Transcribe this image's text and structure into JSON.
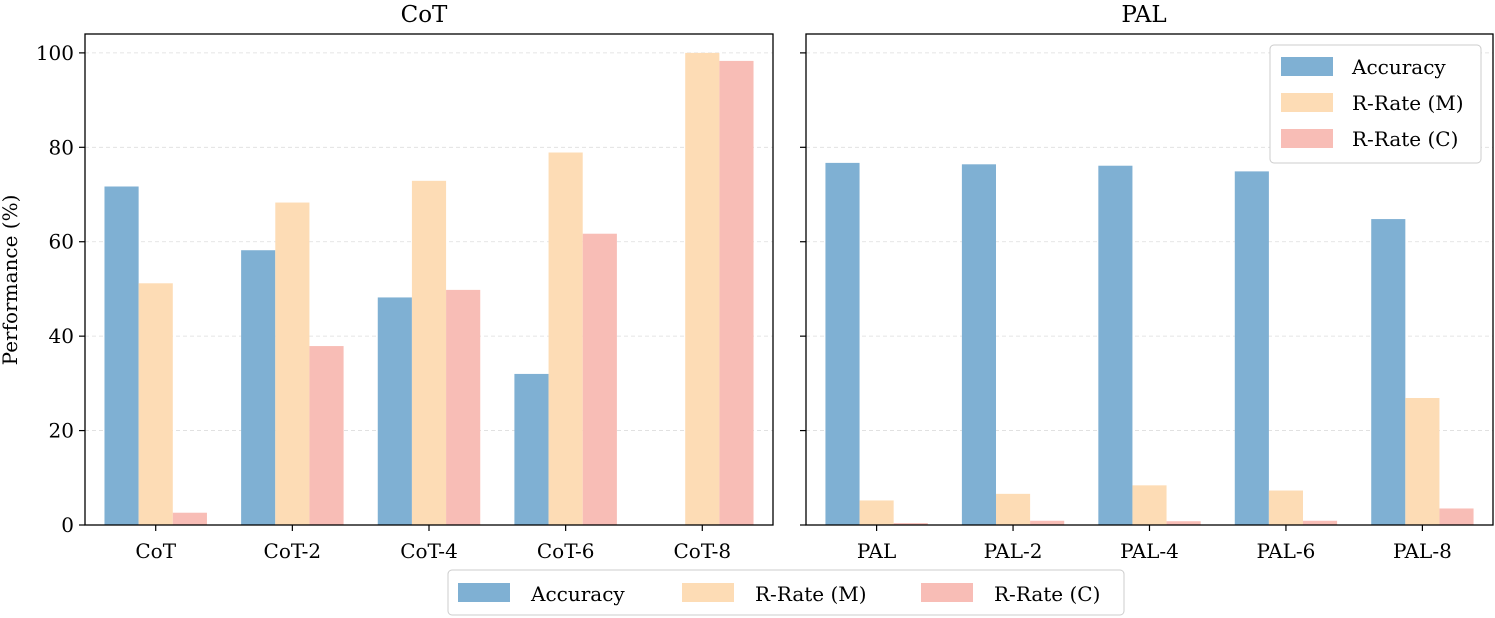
{
  "chart_data": [
    {
      "type": "bar",
      "title": "CoT",
      "ylabel": "Performance (%)",
      "xlabel": "",
      "ylim": [
        0,
        104
      ],
      "yticks": [
        0,
        20,
        40,
        60,
        80,
        100
      ],
      "grid": "y-dashed",
      "categories": [
        "CoT",
        "CoT-2",
        "CoT-4",
        "CoT-6",
        "CoT-8"
      ],
      "series": [
        {
          "name": "Accuracy",
          "color": "#7fb0d3",
          "values": [
            71.7,
            58.2,
            48.2,
            32.0,
            0.0
          ]
        },
        {
          "name": "R-Rate (M)",
          "color": "#fddcb5",
          "values": [
            51.2,
            68.3,
            72.9,
            78.9,
            100.0
          ]
        },
        {
          "name": "R-Rate (C)",
          "color": "#f8bdb6",
          "values": [
            2.6,
            37.9,
            49.8,
            61.7,
            98.3
          ]
        }
      ]
    },
    {
      "type": "bar",
      "title": "PAL",
      "ylabel": "",
      "xlabel": "",
      "ylim": [
        0,
        104
      ],
      "yticks": [
        0,
        20,
        40,
        60,
        80,
        100
      ],
      "grid": "y-dashed",
      "legend": "top-right",
      "categories": [
        "PAL",
        "PAL-2",
        "PAL-4",
        "PAL-6",
        "PAL-8"
      ],
      "series": [
        {
          "name": "Accuracy",
          "color": "#7fb0d3",
          "values": [
            76.7,
            76.4,
            76.1,
            74.9,
            64.8
          ]
        },
        {
          "name": "R-Rate (M)",
          "color": "#fddcb5",
          "values": [
            5.2,
            6.6,
            8.4,
            7.3,
            26.9
          ]
        },
        {
          "name": "R-Rate (C)",
          "color": "#f8bdb6",
          "values": [
            0.4,
            0.9,
            0.8,
            0.9,
            3.5
          ]
        }
      ]
    }
  ],
  "legend": {
    "entries": [
      {
        "label": "Accuracy",
        "color": "#7fb0d3"
      },
      {
        "label": "R-Rate (M)",
        "color": "#fddcb5"
      },
      {
        "label": "R-Rate (C)",
        "color": "#f8bdb6"
      }
    ],
    "placement": "bottom-center"
  }
}
